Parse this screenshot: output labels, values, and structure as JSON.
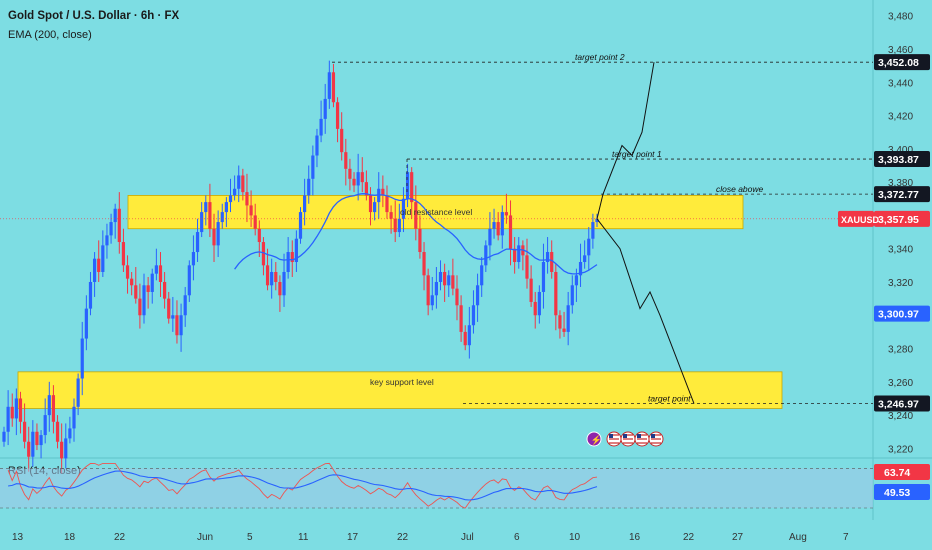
{
  "header": {
    "symbol_line": "Gold Spot / U.S. Dollar · 6h · FX",
    "indicator_line": "EMA (200, close)"
  },
  "rsi_label": "RSI (14, close)",
  "chart_data": {
    "type": "candlestick",
    "symbol": "XAUUSD",
    "timeframe": "6h",
    "ylim": [
      3200,
      3490
    ],
    "y_ticks": [
      3220,
      3240,
      3260,
      3280,
      3300,
      3320,
      3340,
      3360,
      3380,
      3400,
      3420,
      3440,
      3460,
      3480
    ],
    "x_ticks": [
      "13",
      "18",
      "22",
      "Jun",
      "5",
      "11",
      "17",
      "22",
      "Jul",
      "6",
      "10",
      "16",
      "22",
      "27",
      "Aug",
      "7"
    ],
    "price_tags": [
      {
        "label": "3,452.08",
        "value": 3452.08,
        "style": "dark"
      },
      {
        "label": "3,393.87",
        "value": 3393.87,
        "style": "dark"
      },
      {
        "label": "3,372.77",
        "value": 3372.77,
        "style": "dark"
      },
      {
        "label": "3,357.95",
        "value": 3357.95,
        "style": "red",
        "symbol": "XAUUSD"
      },
      {
        "label": "3,300.97",
        "value": 3300.97,
        "style": "blue"
      },
      {
        "label": "3,246.97",
        "value": 3246.97,
        "style": "dark"
      }
    ],
    "zones": [
      {
        "label": "old resistance level",
        "top": 3372,
        "bottom": 3352
      },
      {
        "label": "key support level",
        "top": 3266,
        "bottom": 3244
      }
    ],
    "annotations": [
      {
        "text": "target point   2",
        "price": 3452.08
      },
      {
        "text": "target point   1",
        "price": 3393.87
      },
      {
        "text": "close abowe",
        "price": 3372.77
      },
      {
        "text": "target point",
        "price": 3246.97
      }
    ],
    "ohlc_closes": [
      3230,
      3245,
      3238,
      3250,
      3236,
      3224,
      3215,
      3230,
      3222,
      3228,
      3240,
      3252,
      3236,
      3224,
      3214,
      3226,
      3232,
      3245,
      3262,
      3286,
      3304,
      3320,
      3334,
      3326,
      3342,
      3348,
      3356,
      3364,
      3344,
      3330,
      3322,
      3318,
      3310,
      3300,
      3318,
      3314,
      3325,
      3330,
      3320,
      3310,
      3298,
      3300,
      3288,
      3300,
      3312,
      3330,
      3338,
      3350,
      3362,
      3368,
      3352,
      3342,
      3356,
      3362,
      3368,
      3372,
      3376,
      3384,
      3374,
      3366,
      3360,
      3352,
      3344,
      3330,
      3318,
      3326,
      3320,
      3312,
      3326,
      3338,
      3332,
      3346,
      3362,
      3372,
      3382,
      3396,
      3408,
      3418,
      3430,
      3446,
      3428,
      3412,
      3398,
      3388,
      3382,
      3378,
      3386,
      3380,
      3372,
      3362,
      3368,
      3376,
      3372,
      3362,
      3358,
      3350,
      3358,
      3370,
      3386,
      3368,
      3352,
      3338,
      3324,
      3306,
      3312,
      3320,
      3326,
      3318,
      3324,
      3316,
      3306,
      3290,
      3282,
      3294,
      3306,
      3318,
      3330,
      3342,
      3352,
      3356,
      3348,
      3362,
      3360,
      3340,
      3332,
      3342,
      3336,
      3322,
      3308,
      3300,
      3314,
      3332,
      3338,
      3326,
      3300,
      3292,
      3290,
      3306,
      3318,
      3324,
      3332,
      3336,
      3346,
      3356,
      3358
    ],
    "projection_up": [
      [
        3357.95,
        0
      ],
      [
        3372.77,
        1
      ],
      [
        3400,
        2
      ],
      [
        3396,
        3
      ],
      [
        3410,
        4
      ],
      [
        3452.08,
        5
      ]
    ],
    "projection_down": [
      [
        3357.95,
        0
      ],
      [
        3340,
        1
      ],
      [
        3304,
        2
      ],
      [
        3314,
        3
      ],
      [
        3300,
        4
      ],
      [
        3246.97,
        5
      ]
    ],
    "rsi": {
      "values": [
        63.74,
        49.53
      ],
      "band": [
        30,
        70
      ]
    },
    "icons": [
      "lightning-icon",
      "us-flag-icon",
      "us-flag-icon",
      "us-flag-icon",
      "us-flag-icon"
    ]
  },
  "colors": {
    "background": "#7ddde3",
    "zone": "#ffeb3b",
    "up_candle": "#2962ff",
    "down_candle": "#f23645",
    "ema": "#2962ff",
    "rsi_line": "#ef5350",
    "rsi_ma": "#2962ff",
    "tag_dark": "#131722",
    "tag_red": "#f23645",
    "tag_blue": "#2962ff"
  }
}
